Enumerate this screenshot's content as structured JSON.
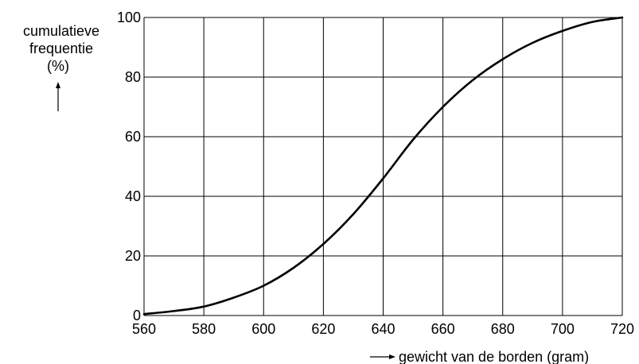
{
  "chart_data": {
    "type": "line",
    "title": "",
    "ylabel_lines": [
      "cumulatieve",
      "frequentie",
      "(%)"
    ],
    "xlabel": "gewicht van de borden (gram)",
    "xlim": [
      560,
      720
    ],
    "ylim": [
      0,
      100
    ],
    "x_ticks": [
      560,
      580,
      600,
      620,
      640,
      660,
      680,
      700,
      720
    ],
    "y_ticks": [
      0,
      20,
      40,
      60,
      80,
      100
    ],
    "grid": true,
    "x_grid": [
      560,
      580,
      600,
      620,
      640,
      660,
      680,
      700,
      720
    ],
    "y_grid": [
      0,
      20,
      40,
      60,
      80,
      100
    ],
    "series": [
      {
        "x": [
          560,
          570,
          580,
          590,
          600,
          610,
          620,
          630,
          640,
          650,
          660,
          670,
          680,
          690,
          700,
          710,
          720
        ],
        "y": [
          0.5,
          1.5,
          3,
          6,
          10,
          16,
          24,
          34,
          46,
          59,
          70,
          79,
          86,
          91.5,
          95.5,
          98.5,
          100
        ]
      }
    ]
  },
  "colors": {
    "line": "#000000",
    "grid": "#000000",
    "background": "#ffffff"
  }
}
